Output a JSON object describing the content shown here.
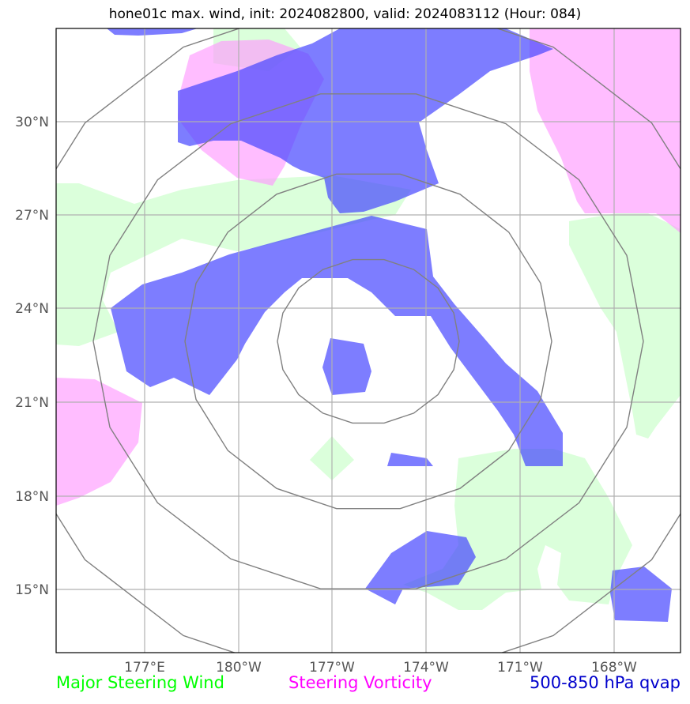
{
  "title": "hone01c max. wind, init: 2024082800, valid: 2024083112 (Hour: 084)",
  "lat_labels": [
    "30°N",
    "27°N",
    "24°N",
    "21°N",
    "18°N",
    "15°N"
  ],
  "lon_labels": [
    "177°E",
    "180°W",
    "177°W",
    "174°W",
    "171°W",
    "168°W"
  ],
  "legend": {
    "major_steering_wind": "Major Steering Wind",
    "steering_vorticity": "Steering Vorticity",
    "qvap": "500-850 hPa qvap"
  },
  "colors": {
    "steering_wind": "#00ff00",
    "steering_vorticity": "#ff00ff",
    "qvap": "#0000cc",
    "range_rings": "#808080"
  }
}
